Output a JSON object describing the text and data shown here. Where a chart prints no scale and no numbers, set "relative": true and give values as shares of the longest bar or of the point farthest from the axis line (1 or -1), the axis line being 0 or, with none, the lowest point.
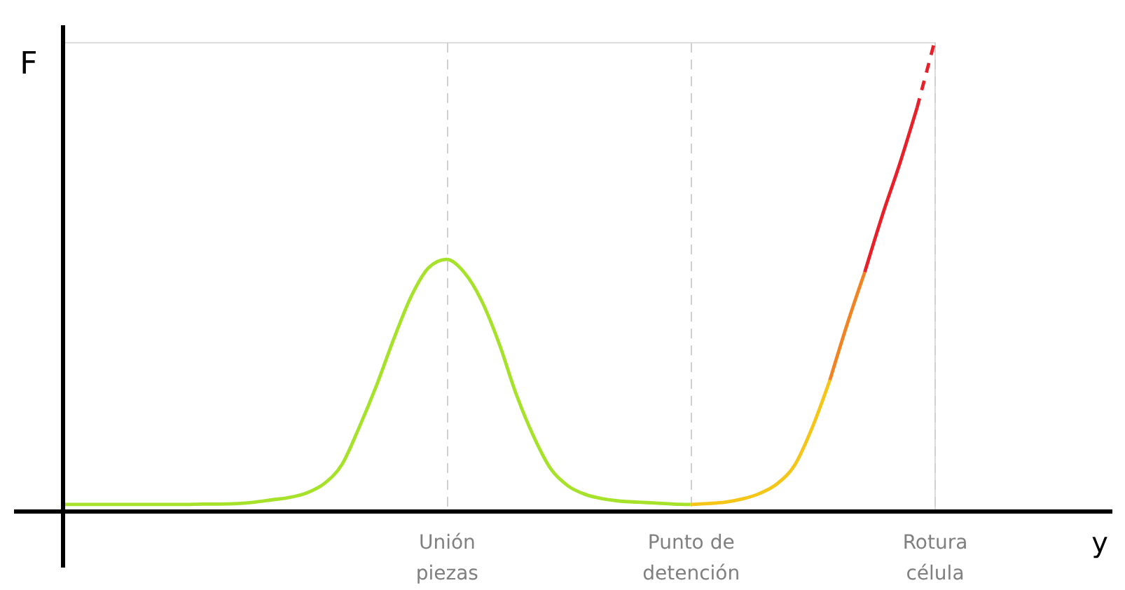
{
  "chart_data": {
    "type": "line",
    "relative": true,
    "annotations": [
      "y"
    ],
    "ylabel": "F",
    "legend": false,
    "marker": "none",
    "grid": "x",
    "categories": [
      null,
      null,
      null,
      null,
      null,
      null,
      null,
      null,
      null,
      null,
      null,
      null,
      null,
      null,
      null,
      null,
      null,
      null,
      null,
      null,
      null,
      null,
      "Unión\npiezas",
      null,
      null,
      null,
      null,
      null,
      null,
      null,
      null,
      null,
      null,
      null,
      null,
      null,
      "Punto de\ndetención",
      null,
      null,
      null,
      null,
      null,
      null,
      null,
      null,
      null,
      null,
      null,
      null,
      null,
      "Rotura\ncélula"
    ],
    "series": [
      {
        "color": "#a6e22a",
        "line_style": "solid",
        "values": [
          0.015,
          0.015,
          0.015,
          0.015,
          0.015,
          0.015,
          0.015,
          0.015,
          0.016,
          0.016,
          0.017,
          0.02,
          0.025,
          0.03,
          0.04,
          0.06,
          0.1,
          0.18,
          0.27,
          0.37,
          0.46,
          0.52,
          0.537,
          0.51,
          0.45,
          0.36,
          0.25,
          0.16,
          0.09,
          0.054,
          0.036,
          0.027,
          0.022,
          0.02,
          0.018,
          0.016,
          0.015,
          null,
          null,
          null,
          null,
          null,
          null,
          null,
          null,
          null,
          null,
          null,
          null,
          null,
          null
        ]
      },
      {
        "color": "#f5c518",
        "line_style": "solid",
        "values": [
          null,
          null,
          null,
          null,
          null,
          null,
          null,
          null,
          null,
          null,
          null,
          null,
          null,
          null,
          null,
          null,
          null,
          null,
          null,
          null,
          null,
          null,
          null,
          null,
          null,
          null,
          null,
          null,
          null,
          null,
          null,
          null,
          null,
          null,
          null,
          null,
          0.015,
          0.017,
          0.02,
          0.027,
          0.039,
          0.06,
          0.1,
          0.18,
          0.28,
          null,
          null,
          null,
          null,
          null,
          null
        ]
      },
      {
        "color": "#f28322",
        "line_style": "solid",
        "values": [
          null,
          null,
          null,
          null,
          null,
          null,
          null,
          null,
          null,
          null,
          null,
          null,
          null,
          null,
          null,
          null,
          null,
          null,
          null,
          null,
          null,
          null,
          null,
          null,
          null,
          null,
          null,
          null,
          null,
          null,
          null,
          null,
          null,
          null,
          null,
          null,
          null,
          null,
          null,
          null,
          null,
          null,
          null,
          null,
          0.28,
          0.4,
          0.51,
          null,
          null,
          null,
          null
        ]
      },
      {
        "color": "#e8202a",
        "line_style": "solid",
        "values": [
          null,
          null,
          null,
          null,
          null,
          null,
          null,
          null,
          null,
          null,
          null,
          null,
          null,
          null,
          null,
          null,
          null,
          null,
          null,
          null,
          null,
          null,
          null,
          null,
          null,
          null,
          null,
          null,
          null,
          null,
          null,
          null,
          null,
          null,
          null,
          null,
          null,
          null,
          null,
          null,
          null,
          null,
          null,
          null,
          null,
          null,
          0.51,
          0.63,
          0.74,
          0.86,
          null
        ]
      },
      {
        "color": "#e8202a",
        "line_style": "dashed",
        "values": [
          null,
          null,
          null,
          null,
          null,
          null,
          null,
          null,
          null,
          null,
          null,
          null,
          null,
          null,
          null,
          null,
          null,
          null,
          null,
          null,
          null,
          null,
          null,
          null,
          null,
          null,
          null,
          null,
          null,
          null,
          null,
          null,
          null,
          null,
          null,
          null,
          null,
          null,
          null,
          null,
          null,
          null,
          null,
          null,
          null,
          null,
          null,
          null,
          null,
          0.86,
          1
        ]
      }
    ]
  }
}
